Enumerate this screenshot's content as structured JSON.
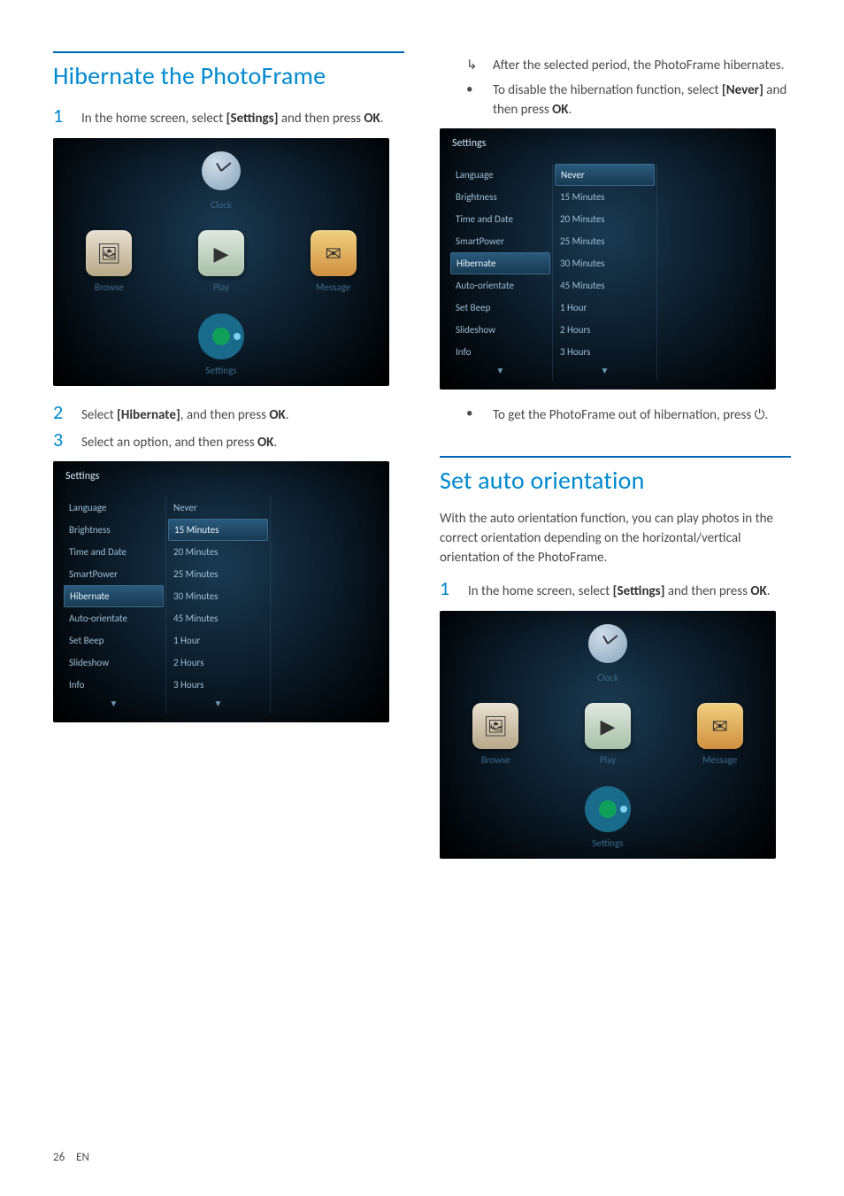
{
  "page": {
    "number": "26",
    "lang": "EN"
  },
  "colors": {
    "accent": "#0089cf",
    "rule": "#0066b3",
    "body_text": "#4a4a4a",
    "shot_bg_inner": "#1a3a52",
    "shot_bg_outer": "#000000",
    "settings_text": "#9fbfd6",
    "settings_highlight": "#7fd4ff"
  },
  "left": {
    "heading": "Hibernate the PhotoFrame",
    "step1_num": "1",
    "step1_a": "In the home screen, select ",
    "step1_bold": "[Settings]",
    "step1_b": " and then press ",
    "step1_ok": "OK",
    "step1_c": ".",
    "step2_num": "2",
    "step2_a": "Select ",
    "step2_bold": "[Hibernate]",
    "step2_b": ", and then press ",
    "step2_ok": "OK",
    "step2_c": ".",
    "step3_num": "3",
    "step3_a": "Select an option, and then press ",
    "step3_ok": "OK",
    "step3_b": "."
  },
  "right": {
    "arrow_line": "After the selected period, the PhotoFrame hibernates.",
    "bullet1_a": "To disable the hibernation function, select ",
    "bullet1_bold": "[Never]",
    "bullet1_b": " and then press ",
    "bullet1_ok": "OK",
    "bullet1_c": ".",
    "bullet2_a": "To get the PhotoFrame out of hibernation, press ",
    "bullet2_glyph": "⏻",
    "bullet2_b": ".",
    "heading2": "Set auto orientation",
    "para2": "With the auto orientation function, you can play photos in the correct orientation depending on the horizontal/vertical orientation of the PhotoFrame.",
    "step1_num": "1",
    "step1_a": "In the home screen, select ",
    "step1_bold": "[Settings]",
    "step1_b": " and then press ",
    "step1_ok": "OK",
    "step1_c": "."
  },
  "home_labels": {
    "clock": "Clock",
    "browse": "Browse",
    "play": "Play",
    "message": "Message",
    "settings": "Settings"
  },
  "settings_panel": {
    "title": "Settings",
    "left_items": [
      "Language",
      "Brightness",
      "Time and Date",
      "SmartPower",
      "Hibernate",
      "Auto-orientate",
      "Set Beep",
      "Slideshow",
      "Info"
    ],
    "left_selected_index": 4,
    "mid_items": [
      "Never",
      "15 Minutes",
      "20 Minutes",
      "25 Minutes",
      "30 Minutes",
      "45 Minutes",
      "1 Hour",
      "2 Hours",
      "3 Hours"
    ],
    "mid_highlight_first_index": 1,
    "mid_highlight_second_index": 0,
    "scroll_glyph": "▼"
  }
}
